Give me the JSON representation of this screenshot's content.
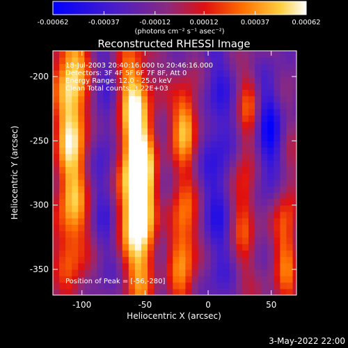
{
  "chart_data": {
    "type": "heatmap",
    "title": "Reconstructed RHESSI Image",
    "xlabel": "Heliocentric X (arcsec)",
    "ylabel": "Heliocentric Y (arcsec)",
    "xlim": [
      -123,
      70
    ],
    "ylim": [
      -370,
      -180
    ],
    "x_ticks": [
      -100,
      -50,
      0,
      50
    ],
    "x_tick_labels": [
      "-100",
      "-50",
      "0",
      "50"
    ],
    "y_ticks": [
      -200,
      -250,
      -300,
      -350
    ],
    "y_tick_labels": [
      "-200",
      "-250",
      "-300",
      "-350"
    ],
    "colorbar": {
      "range": [
        -0.00062,
        0.00062
      ],
      "ticks": [
        -0.00062,
        -0.00037,
        -0.00012,
        0.00012,
        0.00037,
        0.00062
      ],
      "tick_labels": [
        "-0.00062",
        "-0.00037",
        "-0.00012",
        "0.00012",
        "0.00037",
        "0.00062"
      ],
      "units_label": "(photons cm⁻² s⁻¹ asec⁻²)",
      "colormap": "blue-purple-red-yellow-white"
    },
    "annotations": [
      "18-Jul-2003 20:40:16.000 to 20:46:16.000",
      "Detectors: 3F 4F 5F 6F 7F 8F, Att 0",
      "Energy Range: 12.0 - 25.0 keV",
      "Clean     Total counts: 3.22E+03"
    ],
    "peak_label": "Position of Peak = [-56,-280]",
    "peak_position": [
      -56,
      -280
    ],
    "timestamp": "3-May-2022 22:00"
  }
}
